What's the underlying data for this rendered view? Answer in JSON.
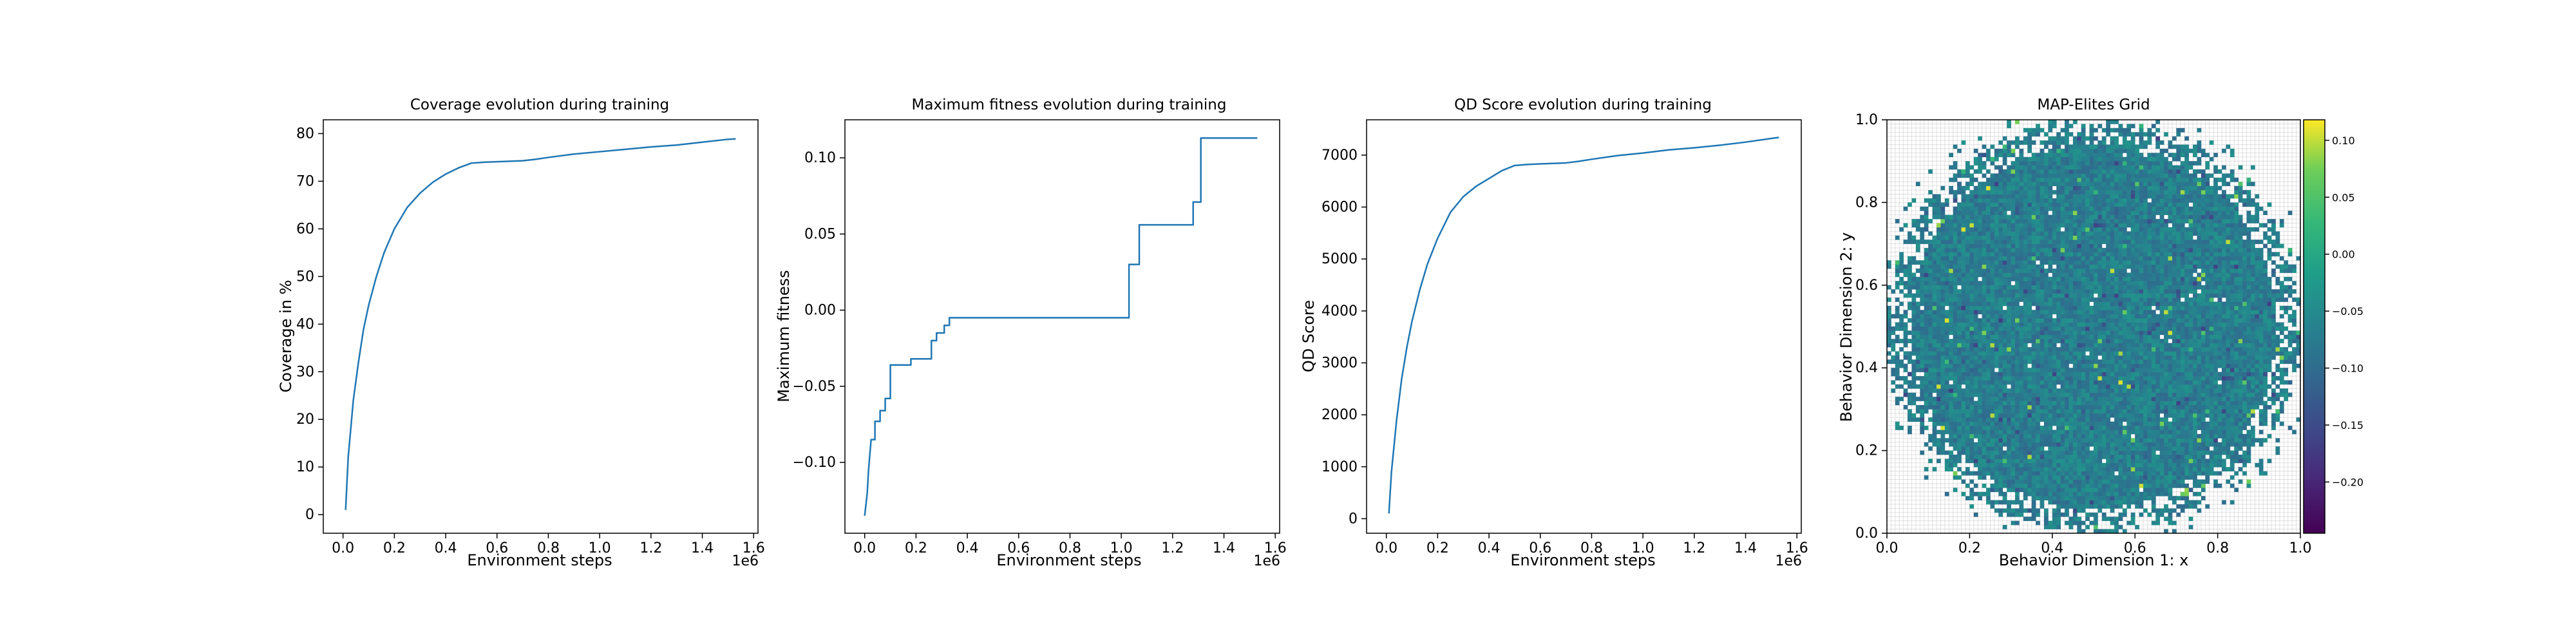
{
  "chart_data": [
    {
      "type": "line",
      "title": "Coverage evolution during training",
      "xlabel": "Environment steps",
      "ylabel": "Coverage in %",
      "x_multiplier_label": "1e6",
      "xlim": [
        -0.077,
        1.617
      ],
      "ylim": [
        -3.9,
        82.9
      ],
      "xticks": [
        0.0,
        0.2,
        0.4,
        0.6,
        0.8,
        1.0,
        1.2,
        1.4,
        1.6
      ],
      "xtick_labels": [
        "0.0",
        "0.2",
        "0.4",
        "0.6",
        "0.8",
        "1.0",
        "1.2",
        "1.4",
        "1.6"
      ],
      "yticks": [
        0,
        10,
        20,
        30,
        40,
        50,
        60,
        70,
        80
      ],
      "ytick_labels": [
        "0",
        "10",
        "20",
        "30",
        "40",
        "50",
        "60",
        "70",
        "80"
      ],
      "color": "#1f77b4",
      "grid": false,
      "series": [
        {
          "x": [
            0.01,
            0.02,
            0.04,
            0.06,
            0.08,
            0.1,
            0.13,
            0.16,
            0.2,
            0.25,
            0.3,
            0.35,
            0.4,
            0.45,
            0.5,
            0.55,
            0.6,
            0.65,
            0.7,
            0.75,
            0.8,
            0.9,
            1.0,
            1.1,
            1.2,
            1.3,
            1.4,
            1.5,
            1.53
          ],
          "y": [
            1.0,
            12.0,
            24.0,
            32.0,
            39.0,
            44.0,
            50.0,
            55.0,
            60.0,
            64.5,
            67.5,
            69.8,
            71.5,
            72.8,
            73.8,
            74.0,
            74.1,
            74.2,
            74.3,
            74.6,
            75.0,
            75.7,
            76.2,
            76.7,
            77.2,
            77.6,
            78.2,
            78.8,
            78.9
          ]
        }
      ]
    },
    {
      "type": "line",
      "title": "Maximum fitness evolution during training",
      "xlabel": "Environment steps",
      "ylabel": "Maximum fitness",
      "x_multiplier_label": "1e6",
      "xlim": [
        -0.077,
        1.617
      ],
      "ylim": [
        -0.1465,
        0.125
      ],
      "xticks": [
        0.0,
        0.2,
        0.4,
        0.6,
        0.8,
        1.0,
        1.2,
        1.4,
        1.6
      ],
      "xtick_labels": [
        "0.0",
        "0.2",
        "0.4",
        "0.6",
        "0.8",
        "1.0",
        "1.2",
        "1.4",
        "1.6"
      ],
      "yticks": [
        -0.1,
        -0.05,
        0.0,
        0.05,
        0.1
      ],
      "ytick_labels": [
        "−0.10",
        "−0.05",
        "0.00",
        "0.05",
        "0.10"
      ],
      "color": "#1f77b4",
      "grid": false,
      "series": [
        {
          "x": [
            0.0,
            0.01,
            0.015,
            0.02,
            0.025,
            0.04,
            0.04,
            0.06,
            0.06,
            0.08,
            0.08,
            0.1,
            0.1,
            0.18,
            0.18,
            0.26,
            0.26,
            0.28,
            0.28,
            0.31,
            0.31,
            0.33,
            0.33,
            0.35,
            0.35,
            1.03,
            1.03,
            1.07,
            1.07,
            1.28,
            1.28,
            1.31,
            1.31,
            1.53
          ],
          "y": [
            -0.135,
            -0.12,
            -0.105,
            -0.095,
            -0.085,
            -0.085,
            -0.073,
            -0.073,
            -0.066,
            -0.066,
            -0.058,
            -0.058,
            -0.036,
            -0.036,
            -0.032,
            -0.032,
            -0.02,
            -0.02,
            -0.015,
            -0.015,
            -0.01,
            -0.01,
            -0.005,
            -0.005,
            -0.005,
            -0.005,
            0.03,
            0.03,
            0.056,
            0.056,
            0.071,
            0.071,
            0.113,
            0.113
          ]
        }
      ]
    },
    {
      "type": "line",
      "title": "QD Score evolution during training",
      "xlabel": "Environment steps",
      "ylabel": "QD Score",
      "x_multiplier_label": "1e6",
      "xlim": [
        -0.077,
        1.617
      ],
      "ylim": [
        -280,
        7680
      ],
      "xticks": [
        0.0,
        0.2,
        0.4,
        0.6,
        0.8,
        1.0,
        1.2,
        1.4,
        1.6
      ],
      "xtick_labels": [
        "0.0",
        "0.2",
        "0.4",
        "0.6",
        "0.8",
        "1.0",
        "1.2",
        "1.4",
        "1.6"
      ],
      "yticks": [
        0,
        1000,
        2000,
        3000,
        4000,
        5000,
        6000,
        7000
      ],
      "ytick_labels": [
        "0",
        "1000",
        "2000",
        "3000",
        "4000",
        "5000",
        "6000",
        "7000"
      ],
      "color": "#1f77b4",
      "grid": false,
      "series": [
        {
          "x": [
            0.01,
            0.02,
            0.04,
            0.06,
            0.08,
            0.1,
            0.13,
            0.16,
            0.2,
            0.25,
            0.3,
            0.35,
            0.4,
            0.45,
            0.5,
            0.55,
            0.6,
            0.65,
            0.7,
            0.75,
            0.8,
            0.9,
            1.0,
            1.1,
            1.2,
            1.3,
            1.4,
            1.5,
            1.53
          ],
          "y": [
            100,
            900,
            1900,
            2700,
            3300,
            3800,
            4400,
            4900,
            5400,
            5900,
            6200,
            6400,
            6550,
            6700,
            6800,
            6820,
            6830,
            6840,
            6850,
            6880,
            6920,
            6990,
            7040,
            7100,
            7140,
            7190,
            7250,
            7320,
            7340
          ]
        }
      ]
    },
    {
      "type": "heatmap",
      "title": "MAP-Elites Grid",
      "xlabel": "Behavior Dimension 1: x",
      "ylabel": "Behavior Dimension 2: y",
      "xlim": [
        0.0,
        1.0
      ],
      "ylim": [
        0.0,
        1.0
      ],
      "xticks": [
        0.0,
        0.2,
        0.4,
        0.6,
        0.8,
        1.0
      ],
      "xtick_labels": [
        "0.0",
        "0.2",
        "0.4",
        "0.6",
        "0.8",
        "1.0"
      ],
      "yticks": [
        0.0,
        0.2,
        0.4,
        0.6,
        0.8,
        1.0
      ],
      "ytick_labels": [
        "0.0",
        "0.2",
        "0.4",
        "0.6",
        "0.8",
        "1.0"
      ],
      "grid_resolution": [
        100,
        100
      ],
      "colormap": "viridis",
      "filled_region": "approximately circular, centered near (0.5, 0.5), radius ~0.5, with sparse scattered cells near the border",
      "typical_cell_value": -0.07,
      "colorbar": {
        "range": [
          -0.245,
          0.118
        ],
        "ticks": [
          0.1,
          0.05,
          0.0,
          -0.05,
          -0.1,
          -0.15,
          -0.2
        ],
        "tick_labels": [
          "0.10",
          "0.05",
          "0.00",
          "−0.05",
          "−0.10",
          "−0.15",
          "−0.20"
        ]
      }
    }
  ]
}
